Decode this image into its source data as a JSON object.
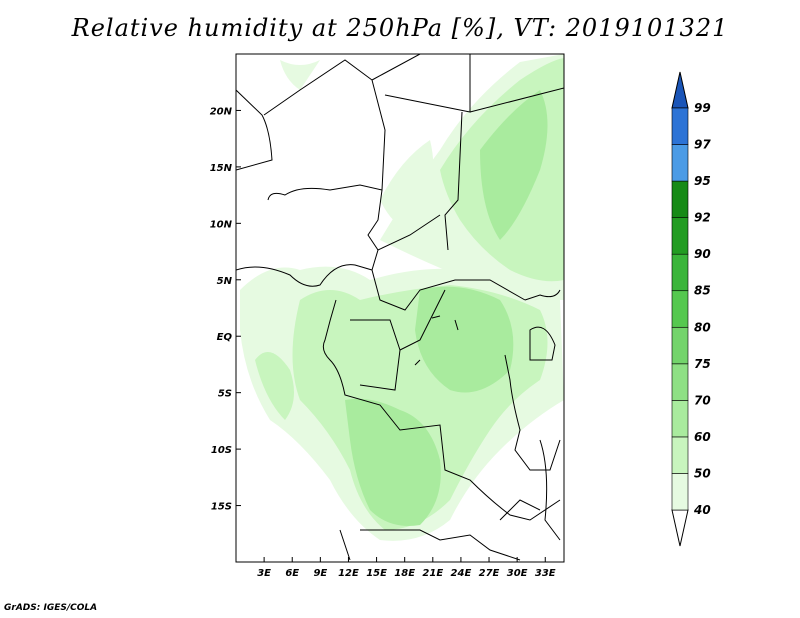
{
  "title": "Relative humidity at 250hPa [%], VT: 2019101321",
  "credit": "GrADS: IGES/COLA",
  "map": {
    "lon_range": [
      0,
      35
    ],
    "lat_range": [
      -20,
      25
    ],
    "x_ticks": [
      "3E",
      "6E",
      "9E",
      "12E",
      "15E",
      "18E",
      "21E",
      "24E",
      "27E",
      "30E",
      "33E"
    ],
    "x_tick_values": [
      3,
      6,
      9,
      12,
      15,
      18,
      21,
      24,
      27,
      30,
      33
    ],
    "y_ticks": [
      "20N",
      "15N",
      "10N",
      "5N",
      "EQ",
      "5S",
      "10S",
      "15S"
    ],
    "y_tick_values": [
      20,
      15,
      10,
      5,
      0,
      -5,
      -10,
      -15
    ]
  },
  "colorbar": {
    "labels": [
      "40",
      "50",
      "60",
      "70",
      "75",
      "80",
      "85",
      "90",
      "92",
      "95",
      "97",
      "99"
    ],
    "colors": [
      "#ffffff",
      "#e6fae1",
      "#c8f5be",
      "#a9eb9e",
      "#8ee084",
      "#73d46b",
      "#55c84f",
      "#3ab53a",
      "#229c22",
      "#168a16",
      "#4b9be6",
      "#2c73d6",
      "#1a55b8"
    ],
    "top_triangle_color": "#1a55b8",
    "bottom_triangle_color": "#ffffff"
  }
}
